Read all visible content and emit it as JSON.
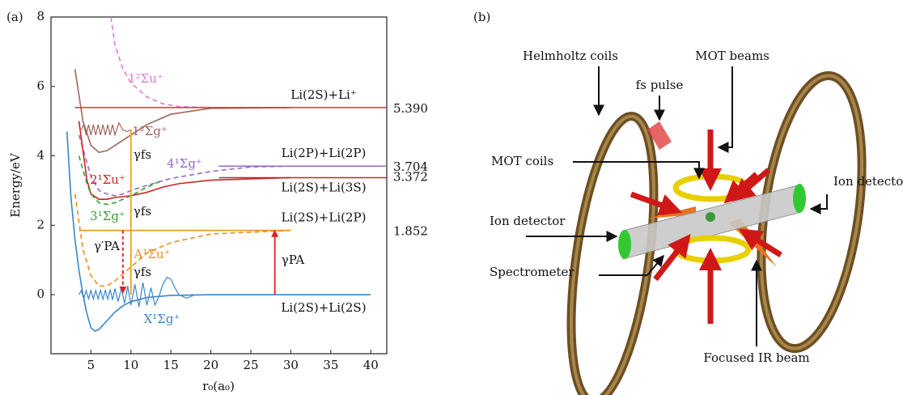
{
  "chart_data": {
    "type": "line",
    "panel_label": "(a)",
    "x_label": "r₀(a₀)",
    "y_label": "Energy/eV",
    "xlim": [
      0,
      42
    ],
    "ylim": [
      -1.7,
      8
    ],
    "xticks": [
      5,
      10,
      15,
      20,
      25,
      30,
      35,
      40
    ],
    "yticks": [
      0,
      2,
      4,
      6,
      8
    ],
    "series": [
      {
        "name": "X¹Σg⁺",
        "color": "#3a86c8",
        "dash": false,
        "x": [
          2,
          2.5,
          3,
          3.5,
          4,
          4.5,
          5,
          5.5,
          6,
          7,
          8,
          9,
          10,
          12,
          15,
          20,
          30,
          40
        ],
        "values": [
          4.7,
          2.8,
          1.6,
          0.7,
          0.0,
          -0.55,
          -0.95,
          -1.05,
          -1.0,
          -0.75,
          -0.5,
          -0.32,
          -0.2,
          -0.08,
          -0.02,
          0,
          0,
          0
        ]
      },
      {
        "name": "1²Σu⁺",
        "color": "#e07bd0",
        "dash": true,
        "x": [
          7.5,
          8,
          9,
          10,
          12,
          14,
          16,
          20,
          30
        ],
        "values": [
          8,
          7.2,
          6.5,
          6.1,
          5.7,
          5.5,
          5.42,
          5.39,
          5.39
        ]
      },
      {
        "name": "1²Σg⁺",
        "color": "#a0665a",
        "dash": false,
        "x": [
          3,
          4,
          5,
          6,
          7,
          8,
          10,
          12,
          15,
          20,
          30
        ],
        "values": [
          6.5,
          5.0,
          4.3,
          4.1,
          4.15,
          4.3,
          4.6,
          4.9,
          5.2,
          5.37,
          5.39
        ]
      },
      {
        "name": "4¹Σg⁺",
        "color": "#9966cc",
        "dash": true,
        "x": [
          3.5,
          5,
          6,
          7,
          8,
          9,
          10,
          12,
          15,
          20,
          25,
          30
        ],
        "values": [
          4.6,
          3.4,
          3.0,
          2.9,
          2.85,
          2.9,
          3.0,
          3.15,
          3.35,
          3.55,
          3.68,
          3.704
        ]
      },
      {
        "name": "2¹Σu⁺",
        "color": "#cc2222",
        "dash": false,
        "x": [
          3.5,
          4.5,
          5,
          6,
          7,
          8,
          10,
          12,
          14,
          16,
          20,
          30
        ],
        "values": [
          5.0,
          3.3,
          2.9,
          2.75,
          2.75,
          2.8,
          2.85,
          2.95,
          3.1,
          3.2,
          3.3,
          3.372
        ]
      },
      {
        "name": "3¹Σg⁺",
        "color": "#33a033",
        "dash": true,
        "x": [
          3.5,
          4.5,
          5,
          6,
          7,
          8,
          9,
          10,
          12,
          14
        ],
        "values": [
          4.0,
          3.2,
          2.9,
          2.65,
          2.6,
          2.65,
          2.75,
          2.85,
          3.1,
          3.3
        ]
      },
      {
        "name": "A¹Σu⁺",
        "color": "#f08c1a",
        "dash": true,
        "x": [
          3,
          4,
          5,
          6,
          7,
          8,
          10,
          12,
          15,
          20,
          30
        ],
        "values": [
          2.9,
          1.3,
          0.55,
          0.25,
          0.25,
          0.4,
          0.8,
          1.2,
          1.5,
          1.75,
          1.852
        ]
      },
      {
        "color": "#3a86c8",
        "dash": false,
        "x": [
          3.5,
          3.8,
          4.1,
          4.4,
          4.7,
          5.0,
          5.3,
          5.6,
          5.9,
          6.2,
          6.5,
          6.8,
          7.1,
          7.4,
          7.7,
          8.0,
          8.4,
          8.8,
          9.2,
          9.6,
          10.0,
          10.5,
          11.0,
          11.5,
          12.0,
          12.5,
          13.0,
          13.5,
          14,
          14.5,
          15,
          15.5,
          16,
          17,
          18
        ],
        "values": [
          0,
          0.12,
          -0.12,
          0.12,
          -0.12,
          0.12,
          -0.12,
          0.12,
          -0.12,
          0.13,
          -0.13,
          0.14,
          -0.14,
          0.15,
          -0.15,
          0.18,
          -0.2,
          0.2,
          -0.25,
          0.25,
          -0.3,
          0.3,
          -0.35,
          0.35,
          -0.3,
          0.2,
          -0.3,
          -0.05,
          0.3,
          0.5,
          0.45,
          0.2,
          0.0,
          -0.1,
          0
        ]
      },
      {
        "color": "#a0665a",
        "dash": false,
        "x": [
          3.8,
          4.1,
          4.4,
          4.7,
          5.0,
          5.3,
          5.6,
          5.9,
          6.2,
          6.5,
          6.8,
          7.1,
          7.4,
          7.7,
          8.0,
          8.5,
          9.0,
          9.5,
          10.0
        ],
        "values": [
          4.75,
          4.9,
          4.6,
          4.9,
          4.6,
          4.9,
          4.6,
          4.9,
          4.6,
          4.9,
          4.6,
          4.9,
          4.6,
          4.9,
          4.6,
          4.95,
          4.75,
          4.7,
          4.75
        ]
      }
    ],
    "asymptotes": [
      {
        "name": "Li(2S)+Li⁺",
        "value": 5.39,
        "value_label": "5.390",
        "xrange": [
          3,
          42
        ],
        "color": "#e03030"
      },
      {
        "name": "Li(2P)+Li(2P)",
        "value": 3.704,
        "xrange": [
          21,
          42
        ],
        "color": "#9966cc"
      },
      {
        "name": "Li(2S)+Li(3S)",
        "value": 3.372,
        "xrange": [
          21,
          42
        ],
        "color": "#b03030"
      },
      {
        "name": "Li(2S)+Li(2P)",
        "value": 1.852,
        "xrange": [
          3.5,
          30
        ],
        "color": "#f08c1a"
      }
    ],
    "transitions": [
      {
        "x": 10,
        "from": 0,
        "to": 4.75,
        "color": "#f0a020",
        "dash": false,
        "arrow": false
      },
      {
        "x": 9,
        "from": 1.85,
        "to": 0.05,
        "color": "#e02020",
        "dash": true,
        "arrow": true
      },
      {
        "x": 28,
        "from": 0,
        "to": 1.852,
        "color": "#e02020",
        "dash": false,
        "arrow": true
      }
    ],
    "annotations": [
      "γfs",
      "γfs",
      "γfs",
      "γ′PA",
      "γPA",
      "Li(2S)+Li(2S)"
    ]
  },
  "diagram": {
    "panel_label": "(b)",
    "labels": [
      "Helmholtz coils",
      "MOT beams",
      "fs pulse",
      "MOT coils",
      "Ion detector",
      "Ion detector",
      "Spectrometer",
      "Focused IR beam"
    ]
  }
}
